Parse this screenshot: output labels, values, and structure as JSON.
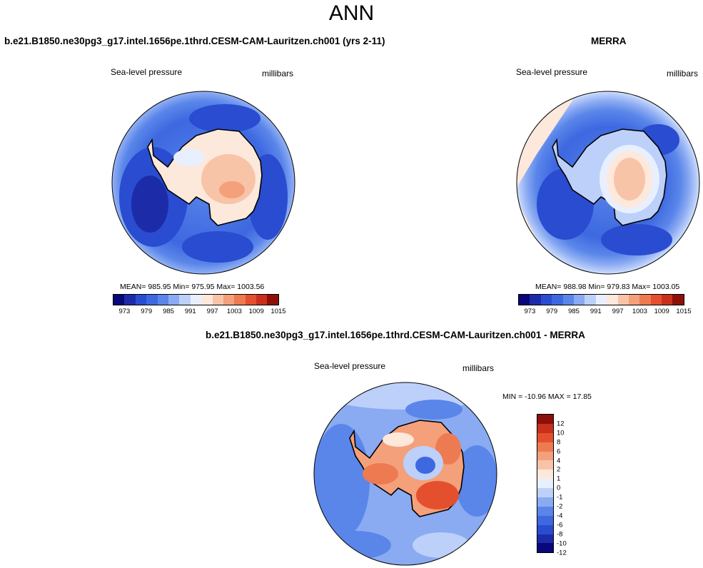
{
  "figure_title": "ANN",
  "panels": {
    "model": {
      "title": "b.e21.B1850.ne30pg3_g17.intel.1656pe.1thrd.CESM-CAM-Lauritzen.ch001 (yrs 2-11)",
      "field_label": "Sea-level pressure",
      "units": "millibars",
      "stats": "MEAN= 985.95  Min= 975.95  Max= 1003.56"
    },
    "obs": {
      "title": "MERRA",
      "field_label": "Sea-level pressure",
      "units": "millibars",
      "stats": "MEAN= 988.98  Min= 979.83  Max= 1003.05"
    },
    "diff": {
      "title": "b.e21.B1850.ne30pg3_g17.intel.1656pe.1thrd.CESM-CAM-Lauritzen.ch001 - MERRA",
      "field_label": "Sea-level pressure",
      "units": "millibars",
      "stats": "MIN = -10.96 MAX =  17.85"
    }
  },
  "colorbar_abs": {
    "tick_labels": [
      "973",
      "979",
      "985",
      "991",
      "997",
      "1003",
      "1009",
      "1015"
    ],
    "colors": [
      "#08087a",
      "#1c2ca8",
      "#2a4cd0",
      "#3d68e0",
      "#5a86ea",
      "#8aaaf2",
      "#bcd0fa",
      "#e8f0ff",
      "#fde8dc",
      "#f8c4a8",
      "#f4a07a",
      "#ee7a52",
      "#e4502e",
      "#c8301c",
      "#8c1008"
    ]
  },
  "colorbar_diff": {
    "tick_labels": [
      "12",
      "10",
      "8",
      "6",
      "4",
      "2",
      "1",
      "0",
      "-1",
      "-2",
      "-4",
      "-6",
      "-8",
      "-10",
      "-12"
    ],
    "colors": [
      "#8c1008",
      "#c8301c",
      "#e4502e",
      "#ee7a52",
      "#f4a07a",
      "#f8c4a8",
      "#fde8dc",
      "#e8f0ff",
      "#bcd0fa",
      "#8aaaf2",
      "#5a86ea",
      "#3d68e0",
      "#2a4cd0",
      "#1c2ca8",
      "#08087a"
    ]
  }
}
